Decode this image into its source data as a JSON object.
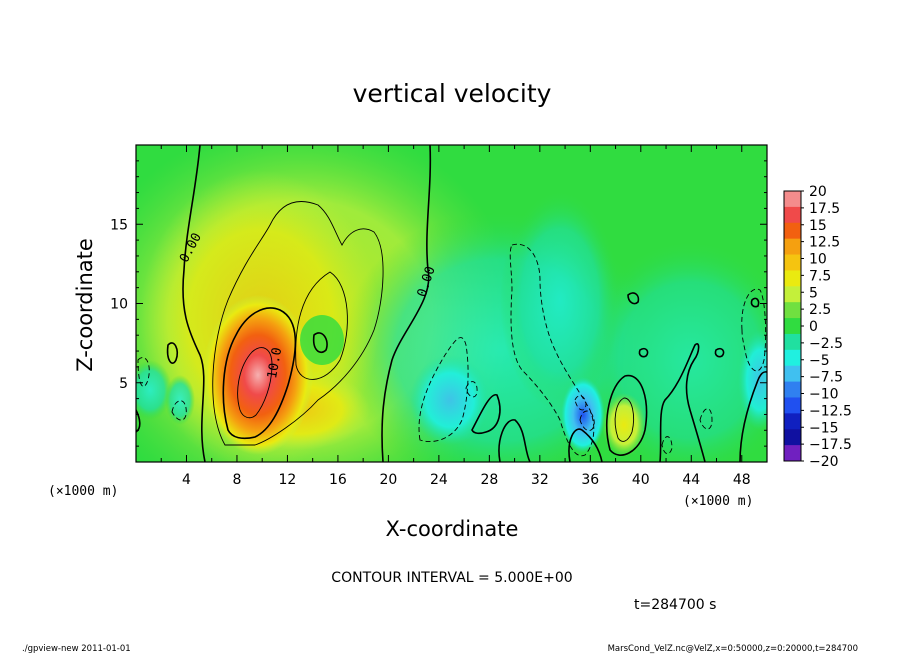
{
  "chart_data": {
    "type": "heatmap",
    "title": "vertical velocity",
    "xlabel": "X-coordinate",
    "ylabel": "Z-coordinate",
    "x_unit_left": "(×1000 m)",
    "x_unit_right": "(×1000 m)",
    "xlim": [
      0,
      50
    ],
    "ylim": [
      0,
      20
    ],
    "x_ticks": [
      4,
      8,
      12,
      16,
      20,
      24,
      28,
      32,
      36,
      40,
      44,
      48
    ],
    "y_ticks": [
      5,
      10,
      15
    ],
    "colorbar": {
      "labels": [
        "20",
        "17.5",
        "15",
        "12.5",
        "10",
        "7.5",
        "5",
        "2.5",
        "0",
        "−2.5",
        "−5",
        "−7.5",
        "−10",
        "−12.5",
        "−15",
        "−17.5",
        "−20"
      ],
      "values": [
        20,
        17.5,
        15,
        12.5,
        10,
        7.5,
        5,
        2.5,
        0,
        -2.5,
        -5,
        -7.5,
        -10,
        -12.5,
        -15,
        -17.5,
        -20
      ],
      "colors": [
        "#f48c8c",
        "#f04a4a",
        "#f26010",
        "#f5a010",
        "#f5c410",
        "#eaea10",
        "#c4f03a",
        "#70e040",
        "#30dc40",
        "#20e0a0",
        "#20f0e0",
        "#40c0f0",
        "#3080f0",
        "#2050f0",
        "#1020c0",
        "#1010a0",
        "#7020c0"
      ]
    },
    "contour_labels": [
      {
        "text": "0.00",
        "x": 4.6,
        "y": 13.4,
        "rotate": -62
      },
      {
        "text": "0.00",
        "x": 23.3,
        "y": 11.3,
        "rotate": -72
      },
      {
        "text": "10.0",
        "x": 11.3,
        "y": 6.2,
        "rotate": -80
      }
    ],
    "features": [
      {
        "kind": "updraft",
        "x": 9.8,
        "z": 5.5,
        "value": 18
      },
      {
        "kind": "updraft",
        "x": 12.2,
        "z": 3.2,
        "value": 8
      },
      {
        "kind": "updraft",
        "x": 9.3,
        "z": 12.5,
        "value": 5
      },
      {
        "kind": "updraft",
        "x": 38.6,
        "z": 2.7,
        "value": 5
      },
      {
        "kind": "downdraft",
        "x": 35.2,
        "z": 3.0,
        "value": -10
      },
      {
        "kind": "downdraft",
        "x": 25.0,
        "z": 4.5,
        "value": -6
      },
      {
        "kind": "downdraft",
        "x": 31.5,
        "z": 10.5,
        "value": -3
      },
      {
        "kind": "downdraft",
        "x": 49.6,
        "z": 6.0,
        "value": -5
      }
    ]
  },
  "footer": {
    "contour_interval": "CONTOUR INTERVAL = 5.000E+00",
    "time": "t=284700  s",
    "program": "./gpview-new   2011-01-01",
    "source": "MarsCond_VelZ.nc@VelZ,x=0:50000,z=0:20000,t=284700"
  }
}
